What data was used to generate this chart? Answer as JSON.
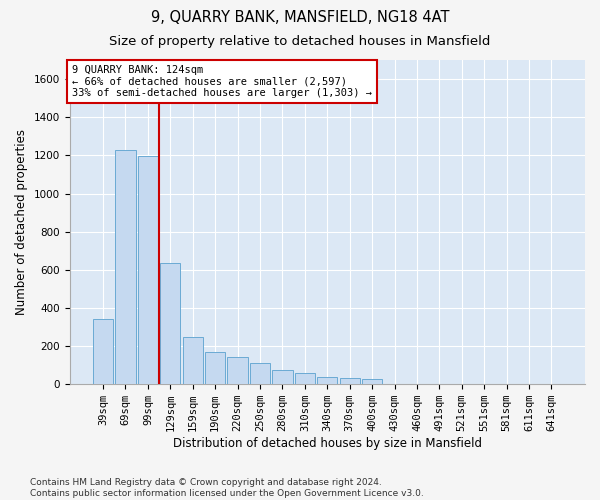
{
  "title": "9, QUARRY BANK, MANSFIELD, NG18 4AT",
  "subtitle": "Size of property relative to detached houses in Mansfield",
  "xlabel": "Distribution of detached houses by size in Mansfield",
  "ylabel": "Number of detached properties",
  "categories": [
    "39sqm",
    "69sqm",
    "99sqm",
    "129sqm",
    "159sqm",
    "190sqm",
    "220sqm",
    "250sqm",
    "280sqm",
    "310sqm",
    "340sqm",
    "370sqm",
    "400sqm",
    "430sqm",
    "460sqm",
    "491sqm",
    "521sqm",
    "551sqm",
    "581sqm",
    "611sqm",
    "641sqm"
  ],
  "values": [
    340,
    1230,
    1195,
    635,
    245,
    170,
    145,
    110,
    75,
    60,
    40,
    35,
    30,
    0,
    0,
    0,
    0,
    0,
    0,
    0,
    0
  ],
  "bar_color": "#c5d9f0",
  "bar_edge_color": "#6aaad4",
  "property_line_color": "#cc0000",
  "annotation_text": "9 QUARRY BANK: 124sqm\n← 66% of detached houses are smaller (2,597)\n33% of semi-detached houses are larger (1,303) →",
  "annotation_box_color": "#ffffff",
  "annotation_box_edge_color": "#cc0000",
  "ylim": [
    0,
    1700
  ],
  "yticks": [
    0,
    200,
    400,
    600,
    800,
    1000,
    1200,
    1400,
    1600
  ],
  "footer_text": "Contains HM Land Registry data © Crown copyright and database right 2024.\nContains public sector information licensed under the Open Government Licence v3.0.",
  "background_color": "#dce8f5",
  "fig_background_color": "#f5f5f5",
  "grid_color": "#ffffff",
  "title_fontsize": 10.5,
  "subtitle_fontsize": 9.5,
  "axis_label_fontsize": 8.5,
  "tick_fontsize": 7.5,
  "annotation_fontsize": 7.5,
  "footer_fontsize": 6.5
}
